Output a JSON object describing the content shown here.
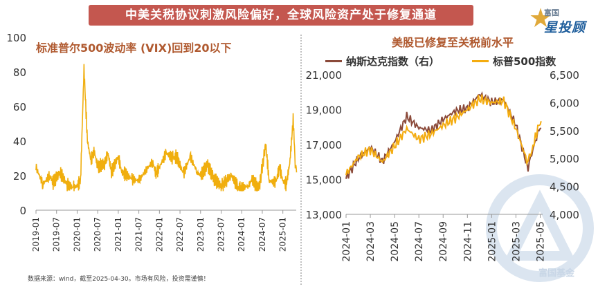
{
  "header": {
    "banner": "中美关税协议刺激风险偏好，全球风险资产处于修复通道",
    "logo_small": "富国",
    "logo_big": "星投顾",
    "watermark": "富国基金"
  },
  "source_note": "数据来源：wind，截至2025-04-30。市场有风险，投资需谨慎！",
  "colors": {
    "vix": "#f0ae0e",
    "nasdaq": "#8b4a3a",
    "sp500": "#f4ac10",
    "banner": "#c4574f",
    "title": "#b05a30"
  },
  "chart_data": [
    {
      "type": "line",
      "title": "标准普尔500波动率 (VIX)回到20以下",
      "ylim": [
        0,
        100
      ],
      "yticks": [
        "0",
        "20",
        "40",
        "60",
        "80",
        "100"
      ],
      "xticks": [
        "2019-01",
        "2019-07",
        "2020-01",
        "2020-07",
        "2021-01",
        "2021-07",
        "2022-01",
        "2022-07",
        "2023-01",
        "2023-07",
        "2024-01",
        "2024-07",
        "2025-01"
      ],
      "series": [
        {
          "values_x": [
            "2019-01",
            "2019-03",
            "2019-05",
            "2019-06",
            "2019-08",
            "2019-10",
            "2019-12",
            "2020-01",
            "2020-02",
            "2020-03",
            "2020-04",
            "2020-05",
            "2020-06",
            "2020-07",
            "2020-09",
            "2020-10",
            "2020-11",
            "2021-01",
            "2021-02",
            "2021-03",
            "2021-05",
            "2021-07",
            "2021-09",
            "2021-11",
            "2021-12",
            "2022-01",
            "2022-03",
            "2022-05",
            "2022-06",
            "2022-08",
            "2022-10",
            "2022-12",
            "2023-01",
            "2023-03",
            "2023-05",
            "2023-07",
            "2023-10",
            "2023-12",
            "2024-01",
            "2024-03",
            "2024-04",
            "2024-06",
            "2024-08",
            "2024-09",
            "2024-11",
            "2024-12",
            "2025-01",
            "2025-02",
            "2025-03",
            "2025-04",
            "2025-04b"
          ],
          "values": [
            25,
            15,
            20,
            16,
            22,
            15,
            13,
            14,
            17,
            82,
            40,
            29,
            34,
            25,
            27,
            33,
            22,
            31,
            22,
            21,
            18,
            17,
            23,
            28,
            21,
            25,
            33,
            30,
            31,
            21,
            31,
            22,
            20,
            26,
            18,
            14,
            20,
            13,
            13,
            14,
            18,
            12,
            38,
            17,
            16,
            25,
            17,
            15,
            27,
            52,
            25
          ]
        }
      ]
    },
    {
      "type": "line",
      "title": "美股已修复至关税前水平",
      "y_left": {
        "ylim": [
          13000,
          21000
        ],
        "yticks": [
          "13,000",
          "15,000",
          "17,000",
          "19,000",
          "21,000"
        ]
      },
      "y_right": {
        "ylim": [
          4000,
          6500
        ],
        "yticks": [
          "4,000",
          "4,500",
          "5,000",
          "5,500",
          "6,000",
          "6,500"
        ]
      },
      "xticks": [
        "2024-01",
        "2024-03",
        "2024-05",
        "2024-07",
        "2024-09",
        "2024-11",
        "2025-01",
        "2025-03",
        "2025-05"
      ],
      "series": [
        {
          "name": "纳斯达克指数（右）",
          "axis": "right",
          "values_x": [
            "2024-01",
            "2024-02",
            "2024-03",
            "2024-04",
            "2024-05",
            "2024-06",
            "2024-07",
            "2024-08",
            "2024-09",
            "2024-10",
            "2024-11",
            "2024-12",
            "2025-01",
            "2025-02",
            "2025-03",
            "2025-04",
            "2025-04b",
            "2025-05"
          ],
          "values": [
            4650,
            5000,
            5200,
            4950,
            5300,
            5750,
            5550,
            5500,
            5700,
            5850,
            5900,
            6150,
            6000,
            6050,
            5600,
            4800,
            5300,
            5600
          ]
        },
        {
          "name": "标普500指数",
          "axis": "left",
          "values_x": [
            "2024-01",
            "2024-02",
            "2024-03",
            "2024-04",
            "2024-05",
            "2024-06",
            "2024-07",
            "2024-08",
            "2024-09",
            "2024-10",
            "2024-11",
            "2024-12",
            "2025-01",
            "2025-02",
            "2025-03",
            "2025-04",
            "2025-04b",
            "2025-05"
          ],
          "values": [
            15300,
            16300,
            16700,
            16000,
            16900,
            17900,
            17300,
            17600,
            18100,
            18500,
            19000,
            19600,
            19400,
            19500,
            17900,
            15900,
            17400,
            18400
          ]
        }
      ]
    }
  ]
}
